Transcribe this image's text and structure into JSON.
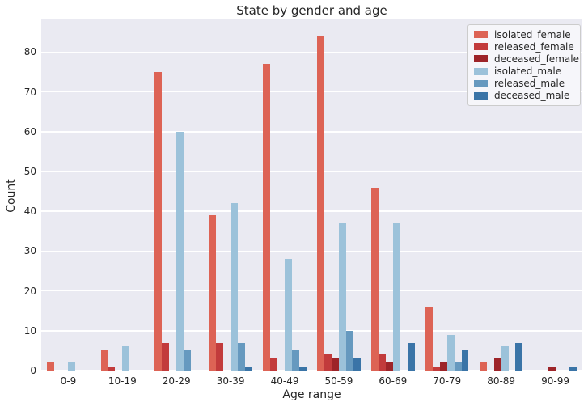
{
  "figure": {
    "title": "State by gender and age",
    "xlabel": "Age range",
    "ylabel": "Count",
    "plot_background": "#eaeaf2",
    "grid_color": "#ffffff",
    "text_color": "#262626",
    "legend_border_color": "#cccccc"
  },
  "chart_data": {
    "type": "bar",
    "title": "State by gender and age",
    "xlabel": "Age range",
    "ylabel": "Count",
    "grid": true,
    "legend_position": "upper right",
    "categories": [
      "0-9",
      "10-19",
      "20-29",
      "30-39",
      "40-49",
      "50-59",
      "60-69",
      "70-79",
      "80-89",
      "90-99"
    ],
    "yticks": [
      0,
      10,
      20,
      30,
      40,
      50,
      60,
      70,
      80
    ],
    "ylim": [
      0,
      88.2
    ],
    "series": [
      {
        "name": "isolated_female",
        "color": "#dd6355",
        "values": [
          2,
          5,
          75,
          39,
          77,
          84,
          46,
          16,
          2,
          0
        ]
      },
      {
        "name": "released_female",
        "color": "#c23b3c",
        "values": [
          0,
          1,
          7,
          7,
          3,
          4,
          4,
          1,
          0,
          0
        ]
      },
      {
        "name": "deceased_female",
        "color": "#9d2429",
        "values": [
          0,
          0,
          0,
          0,
          0,
          3,
          2,
          2,
          3,
          1
        ]
      },
      {
        "name": "isolated_male",
        "color": "#9cc2da",
        "values": [
          2,
          6,
          60,
          42,
          28,
          37,
          37,
          9,
          6,
          0
        ]
      },
      {
        "name": "released_male",
        "color": "#6699bf",
        "values": [
          0,
          0,
          5,
          7,
          5,
          10,
          0,
          2,
          0,
          0
        ]
      },
      {
        "name": "deceased_male",
        "color": "#3a74a7",
        "values": [
          0,
          0,
          0,
          1,
          1,
          3,
          7,
          5,
          7,
          1
        ]
      }
    ]
  }
}
